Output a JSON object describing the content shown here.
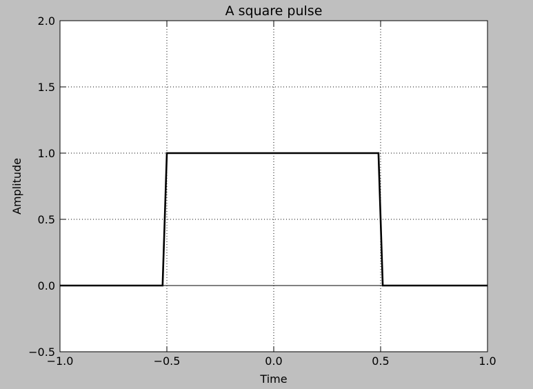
{
  "chart_data": {
    "type": "line",
    "title": "A square pulse",
    "xlabel": "Time",
    "ylabel": "Amplitude",
    "xlim": [
      -1.0,
      1.0
    ],
    "ylim": [
      -0.5,
      2.0
    ],
    "grid": true,
    "x_ticks": [
      -1.0,
      -0.5,
      0.0,
      0.5,
      1.0
    ],
    "y_ticks": [
      -0.5,
      0.0,
      0.5,
      1.0,
      1.5,
      2.0
    ],
    "x_tick_labels": [
      "−1.0",
      "−0.5",
      "0.0",
      "0.5",
      "1.0"
    ],
    "y_tick_labels": [
      "−0.5",
      "0.0",
      "0.5",
      "1.0",
      "1.5",
      "2.0"
    ],
    "series": [
      {
        "color": "#000000",
        "x": [
          -1.0,
          -0.52,
          -0.5,
          0.49,
          0.51,
          1.0
        ],
        "y": [
          0,
          0,
          1,
          1,
          0,
          0
        ]
      }
    ],
    "reference_lines": [
      {
        "axis": "y",
        "value": 0.0,
        "color": "#000000"
      }
    ]
  }
}
